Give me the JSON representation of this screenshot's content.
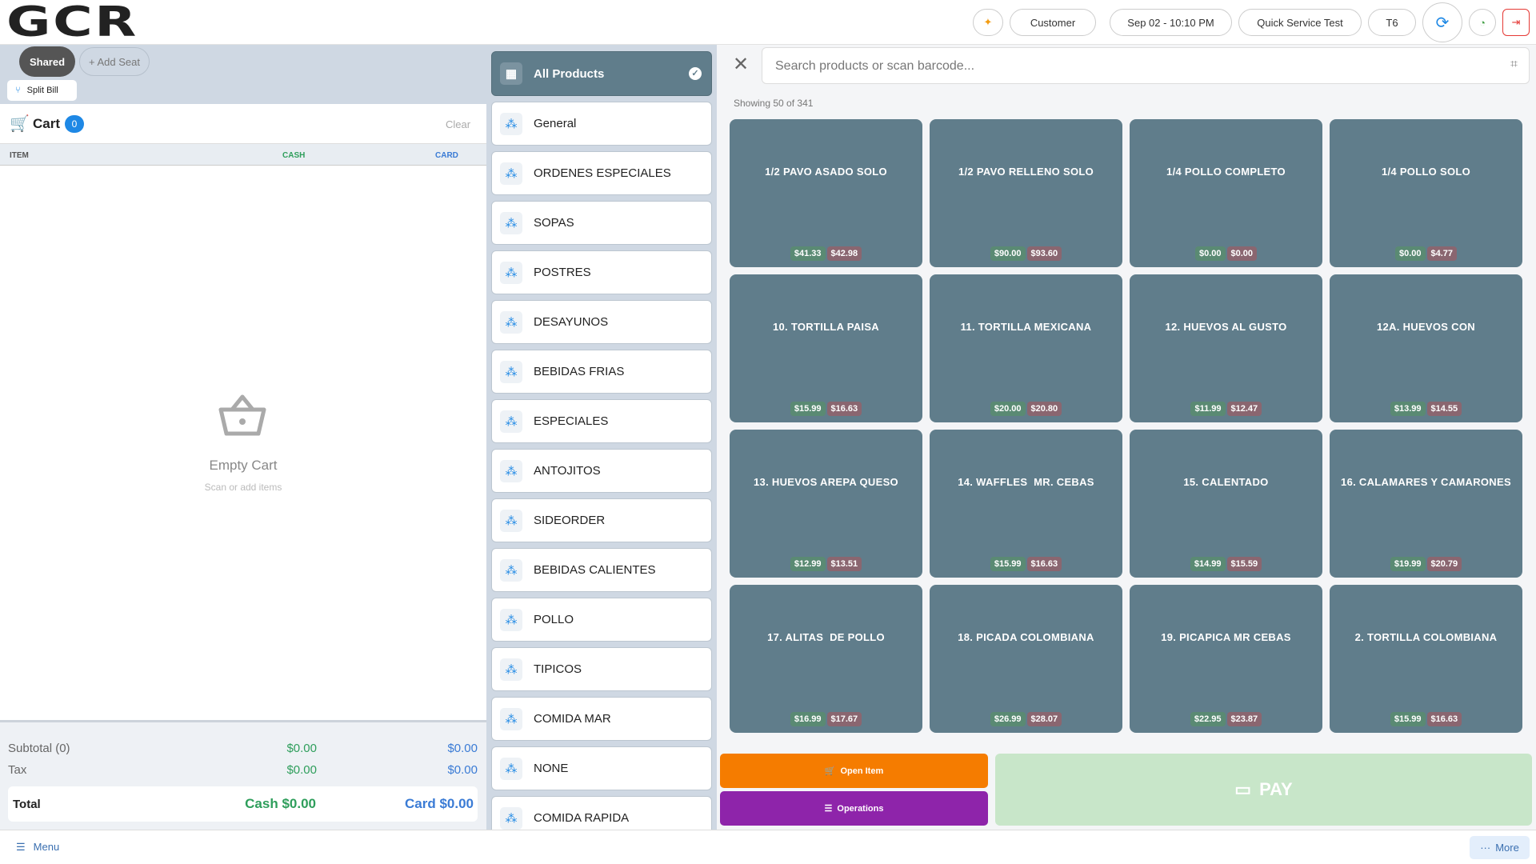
{
  "header": {
    "logo": "GCR",
    "customer": "Customer",
    "datetime": "Sep 02 - 10:10 PM",
    "location": "Quick Service Test",
    "table": "T6"
  },
  "seats": {
    "shared": "Shared",
    "add_seat": "+ Add Seat",
    "split_bill": "Split Bill"
  },
  "cart": {
    "title": "Cart",
    "count": "0",
    "clear": "Clear",
    "columns": [
      "ITEM",
      "CASH",
      "CARD"
    ],
    "empty_title": "Empty Cart",
    "empty_hint": "Scan or add items"
  },
  "totals": {
    "subtotal_label": "Subtotal (0)",
    "subtotal_cash": "$0.00",
    "subtotal_card": "$0.00",
    "tax_label": "Tax",
    "tax_cash": "$0.00",
    "tax_card": "$0.00",
    "total_label": "Total",
    "total_cash": "Cash $0.00",
    "total_card": "Card $0.00"
  },
  "categories": [
    "All Products",
    "General",
    "ORDENES ESPECIALES",
    "SOPAS",
    "POSTRES",
    "DESAYUNOS",
    "BEBIDAS FRIAS",
    "ESPECIALES",
    "ANTOJITOS",
    "SIDEORDER",
    "BEBIDAS CALIENTES",
    "POLLO",
    "TIPICOS",
    "COMIDA MAR",
    "NONE",
    "COMIDA RAPIDA"
  ],
  "search": {
    "placeholder": "Search products or scan barcode...",
    "showing": "Showing 50 of 341"
  },
  "products": [
    {
      "name": "1/2 PAVO ASADO SOLO",
      "cash": "$41.33",
      "card": "$42.98"
    },
    {
      "name": "1/2 PAVO RELLENO SOLO",
      "cash": "$90.00",
      "card": "$93.60"
    },
    {
      "name": "1/4 POLLO COMPLETO",
      "cash": "$0.00",
      "card": "$0.00"
    },
    {
      "name": "1/4 POLLO SOLO",
      "cash": "$0.00",
      "card": "$4.77"
    },
    {
      "name": "10. TORTILLA PAISA",
      "cash": "$15.99",
      "card": "$16.63"
    },
    {
      "name": "11. TORTILLA MEXICANA",
      "cash": "$20.00",
      "card": "$20.80"
    },
    {
      "name": "12. HUEVOS AL GUSTO",
      "cash": "$11.99",
      "card": "$12.47"
    },
    {
      "name": "12A. HUEVOS CON",
      "cash": "$13.99",
      "card": "$14.55"
    },
    {
      "name": "13. HUEVOS AREPA QUESO",
      "cash": "$12.99",
      "card": "$13.51"
    },
    {
      "name": "14. WAFFLES  MR. CEBAS",
      "cash": "$15.99",
      "card": "$16.63"
    },
    {
      "name": "15. CALENTADO",
      "cash": "$14.99",
      "card": "$15.59"
    },
    {
      "name": "16. CALAMARES Y CAMARONES",
      "cash": "$19.99",
      "card": "$20.79"
    },
    {
      "name": "17. ALITAS  DE POLLO",
      "cash": "$16.99",
      "card": "$17.67"
    },
    {
      "name": "18. PICADA COLOMBIANA",
      "cash": "$26.99",
      "card": "$28.07"
    },
    {
      "name": "19. PICAPICA MR CEBAS",
      "cash": "$22.95",
      "card": "$23.87"
    },
    {
      "name": "2. TORTILLA COLOMBIANA",
      "cash": "$15.99",
      "card": "$16.63"
    }
  ],
  "actions": {
    "open_item": "Open Item",
    "operations": "Operations",
    "pay": "PAY"
  },
  "footer": {
    "menu": "Menu",
    "more": "More"
  }
}
